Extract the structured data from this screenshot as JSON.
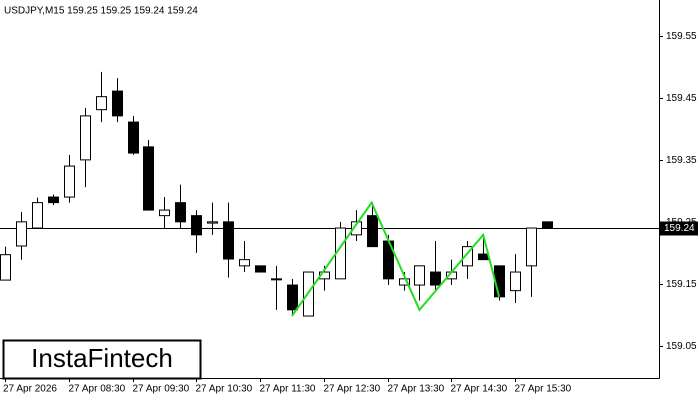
{
  "chart_data": {
    "type": "candlestick",
    "header": "USDJPY,M15  159.25 159.25 159.24 159.24",
    "logo": "InstaFintech",
    "categories": [
      "27 Apr 2026",
      null,
      null,
      null,
      "27 Apr 08:30",
      null,
      null,
      null,
      "27 Apr 09:30",
      null,
      null,
      null,
      "27 Apr 10:30",
      null,
      null,
      null,
      "27 Apr 11:30",
      null,
      null,
      null,
      "27 Apr 12:30",
      null,
      null,
      null,
      "27 Apr 13:30",
      null,
      null,
      null,
      "27 Apr 14:30",
      null,
      null,
      null,
      "27 Apr 15:30",
      null,
      null
    ],
    "open": [
      159.156,
      159.211,
      159.24,
      159.29,
      159.29,
      159.35,
      159.431,
      159.461,
      159.411,
      159.371,
      159.26,
      159.281,
      159.26,
      159.248,
      159.25,
      159.179,
      159.179,
      159.158,
      159.148,
      159.098,
      159.158,
      159.158,
      159.229,
      159.26,
      159.219,
      159.148,
      159.148,
      159.169,
      159.158,
      159.179,
      159.198,
      159.179,
      159.139,
      159.179,
      159.25
    ],
    "high": [
      159.21,
      159.266,
      159.289,
      159.294,
      159.358,
      159.434,
      159.492,
      159.482,
      159.421,
      159.382,
      159.29,
      159.31,
      159.269,
      159.281,
      159.281,
      159.219,
      159.179,
      159.179,
      159.158,
      159.169,
      159.179,
      159.25,
      159.269,
      159.281,
      159.229,
      159.169,
      159.179,
      159.219,
      159.189,
      159.219,
      159.229,
      159.179,
      159.198,
      159.24,
      159.25
    ],
    "low": [
      159.156,
      159.189,
      159.24,
      159.277,
      159.281,
      159.306,
      159.411,
      159.411,
      159.358,
      159.269,
      159.24,
      159.24,
      159.2,
      159.229,
      159.16,
      159.169,
      159.169,
      159.108,
      159.098,
      159.098,
      159.139,
      159.158,
      159.219,
      159.21,
      159.148,
      159.139,
      159.123,
      159.139,
      159.148,
      159.158,
      159.189,
      159.123,
      159.119,
      159.129,
      159.24
    ],
    "close": [
      159.197,
      159.25,
      159.281,
      159.281,
      159.34,
      159.421,
      159.452,
      159.421,
      159.361,
      159.269,
      159.269,
      159.25,
      159.229,
      159.25,
      159.19,
      159.189,
      159.169,
      159.158,
      159.108,
      159.169,
      159.169,
      159.24,
      159.25,
      159.21,
      159.158,
      159.158,
      159.179,
      159.148,
      159.169,
      159.21,
      159.189,
      159.129,
      159.169,
      159.24,
      159.24
    ],
    "up_color": "#ffffff",
    "down_color": "#000000",
    "ylim": [
      158.998,
      159.608
    ],
    "yticks": [
      159.05,
      159.15,
      159.25,
      159.35,
      159.45,
      159.55
    ],
    "last_price": 159.24,
    "pattern": {
      "color": "#22dd22",
      "index": [
        18,
        23,
        26,
        30,
        31
      ],
      "price": [
        159.098,
        159.281,
        159.108,
        159.229,
        159.129
      ]
    }
  }
}
